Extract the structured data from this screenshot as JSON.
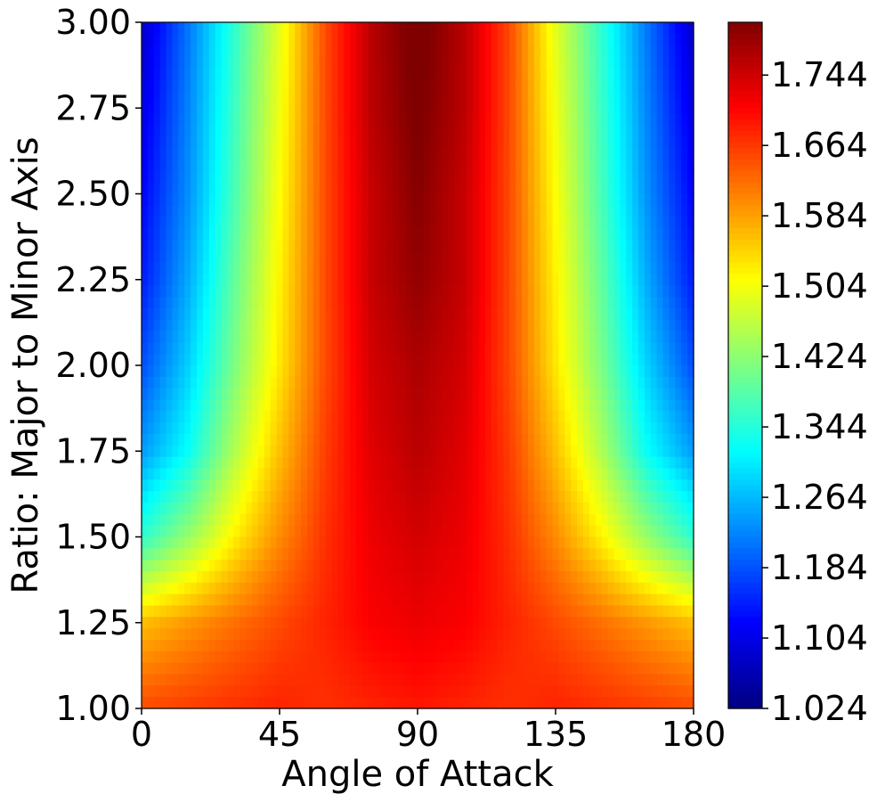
{
  "chart_data": {
    "type": "heatmap",
    "title": "",
    "xlabel": "Angle of Attack",
    "ylabel": "Ratio: Major to Minor Axis",
    "xlim": [
      0,
      180
    ],
    "ylim": [
      1.0,
      3.0
    ],
    "x_ticks": [
      0,
      45,
      90,
      135,
      180
    ],
    "x_tick_labels": [
      "0",
      "45",
      "90",
      "135",
      "180"
    ],
    "y_ticks": [
      1.0,
      1.25,
      1.5,
      1.75,
      2.0,
      2.25,
      2.5,
      2.75,
      3.0
    ],
    "y_tick_labels": [
      "1.00",
      "1.25",
      "1.50",
      "1.75",
      "2.00",
      "2.25",
      "2.50",
      "2.75",
      "3.00"
    ],
    "colormap": "jet",
    "colorbar": {
      "range": [
        1.024,
        1.804
      ],
      "ticks": [
        1.024,
        1.104,
        1.184,
        1.264,
        1.344,
        1.424,
        1.504,
        1.584,
        1.664,
        1.744
      ],
      "tick_labels": [
        "1.024",
        "1.104",
        "1.184",
        "1.264",
        "1.344",
        "1.424",
        "1.504",
        "1.584",
        "1.664",
        "1.744"
      ]
    },
    "grid": false,
    "x": [
      0,
      15,
      30,
      45,
      60,
      75,
      90,
      105,
      120,
      135,
      150,
      165,
      180
    ],
    "y": [
      1.0,
      1.25,
      1.5,
      1.75,
      2.0,
      2.25,
      2.5,
      2.75,
      3.0
    ],
    "z": [
      [
        1.65,
        1.66,
        1.67,
        1.68,
        1.67,
        1.68,
        1.69,
        1.68,
        1.67,
        1.68,
        1.67,
        1.66,
        1.65
      ],
      [
        1.56,
        1.59,
        1.62,
        1.65,
        1.68,
        1.71,
        1.72,
        1.71,
        1.68,
        1.65,
        1.62,
        1.59,
        1.56
      ],
      [
        1.35,
        1.43,
        1.52,
        1.6,
        1.67,
        1.72,
        1.74,
        1.72,
        1.67,
        1.6,
        1.52,
        1.43,
        1.35
      ],
      [
        1.24,
        1.32,
        1.45,
        1.56,
        1.66,
        1.73,
        1.76,
        1.73,
        1.66,
        1.56,
        1.45,
        1.32,
        1.24
      ],
      [
        1.18,
        1.28,
        1.41,
        1.53,
        1.65,
        1.74,
        1.77,
        1.74,
        1.65,
        1.53,
        1.41,
        1.28,
        1.18
      ],
      [
        1.14,
        1.25,
        1.39,
        1.52,
        1.65,
        1.75,
        1.79,
        1.75,
        1.65,
        1.52,
        1.39,
        1.25,
        1.14
      ],
      [
        1.12,
        1.23,
        1.37,
        1.51,
        1.65,
        1.75,
        1.8,
        1.75,
        1.65,
        1.51,
        1.37,
        1.23,
        1.12
      ],
      [
        1.1,
        1.22,
        1.36,
        1.5,
        1.65,
        1.76,
        1.81,
        1.76,
        1.65,
        1.5,
        1.36,
        1.22,
        1.1
      ],
      [
        1.08,
        1.21,
        1.35,
        1.49,
        1.65,
        1.76,
        1.82,
        1.76,
        1.65,
        1.49,
        1.35,
        1.21,
        1.08
      ]
    ]
  }
}
